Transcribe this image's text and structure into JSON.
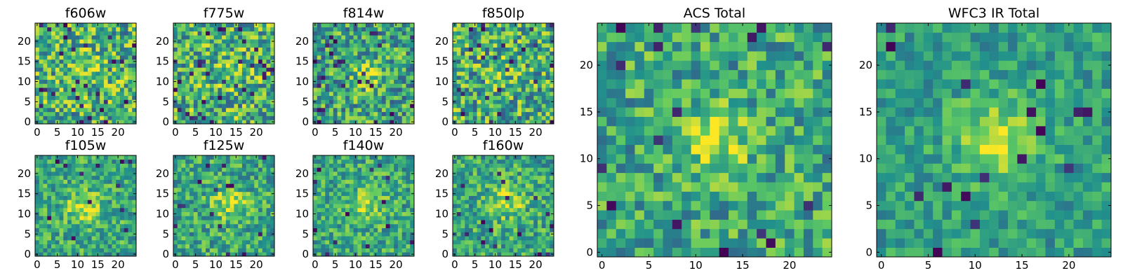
{
  "figure": {
    "description_type": "grid of cutout images (heatmaps)"
  },
  "colormap": {
    "name": "viridis",
    "stops": [
      "#440154",
      "#3b528b",
      "#21918c",
      "#5ec962",
      "#fde725"
    ]
  },
  "chart_data": [
    {
      "type": "heatmap",
      "title": "f606w",
      "grid_size": 25,
      "xticks": [
        0,
        5,
        10,
        15,
        20
      ],
      "yticks": [
        0,
        5,
        10,
        15,
        20
      ],
      "xlim": [
        -0.5,
        24.5
      ],
      "ylim": [
        -0.5,
        24.5
      ],
      "seed": 11,
      "noise": 0.34,
      "blob_amp": 0.18,
      "blob_cx": 12.5,
      "blob_cy": 13.5,
      "blob_sigma": 2.6,
      "base": 0.64,
      "dark_prob": 0.045
    },
    {
      "type": "heatmap",
      "title": "f775w",
      "grid_size": 25,
      "xticks": [
        0,
        5,
        10,
        15,
        20
      ],
      "yticks": [
        0,
        5,
        10,
        15,
        20
      ],
      "xlim": [
        -0.5,
        24.5
      ],
      "ylim": [
        -0.5,
        24.5
      ],
      "seed": 23,
      "noise": 0.34,
      "blob_amp": 0.12,
      "blob_cx": 12.5,
      "blob_cy": 12.5,
      "blob_sigma": 2.6,
      "base": 0.64,
      "dark_prob": 0.045
    },
    {
      "type": "heatmap",
      "title": "f814w",
      "grid_size": 25,
      "xticks": [
        0,
        5,
        10,
        15,
        20
      ],
      "yticks": [
        0,
        5,
        10,
        15,
        20
      ],
      "xlim": [
        -0.5,
        24.5
      ],
      "ylim": [
        -0.5,
        24.5
      ],
      "seed": 37,
      "noise": 0.32,
      "blob_amp": 0.28,
      "blob_cx": 13.0,
      "blob_cy": 11.5,
      "blob_sigma": 2.4,
      "base": 0.58,
      "dark_prob": 0.05
    },
    {
      "type": "heatmap",
      "title": "f850lp",
      "grid_size": 25,
      "xticks": [
        0,
        5,
        10,
        15,
        20
      ],
      "yticks": [
        0,
        5,
        10,
        15,
        20
      ],
      "xlim": [
        -0.5,
        24.5
      ],
      "ylim": [
        -0.5,
        24.5
      ],
      "seed": 41,
      "noise": 0.34,
      "blob_amp": 0.12,
      "blob_cx": 12.0,
      "blob_cy": 12.0,
      "blob_sigma": 2.6,
      "base": 0.62,
      "dark_prob": 0.045
    },
    {
      "type": "heatmap",
      "title": "f105w",
      "grid_size": 25,
      "xticks": [
        0,
        5,
        10,
        15,
        20
      ],
      "yticks": [
        0,
        5,
        10,
        15,
        20
      ],
      "xlim": [
        -0.5,
        24.5
      ],
      "ylim": [
        -0.5,
        24.5
      ],
      "seed": 53,
      "noise": 0.24,
      "blob_amp": 0.3,
      "blob_cx": 11.5,
      "blob_cy": 11.5,
      "blob_sigma": 3.0,
      "base": 0.6,
      "dark_prob": 0.02
    },
    {
      "type": "heatmap",
      "title": "f125w",
      "grid_size": 25,
      "xticks": [
        0,
        5,
        10,
        15,
        20
      ],
      "yticks": [
        0,
        5,
        10,
        15,
        20
      ],
      "xlim": [
        -0.5,
        24.5
      ],
      "ylim": [
        -0.5,
        24.5
      ],
      "seed": 67,
      "noise": 0.25,
      "blob_amp": 0.28,
      "blob_cx": 13.5,
      "blob_cy": 12.5,
      "blob_sigma": 3.0,
      "base": 0.6,
      "dark_prob": 0.02
    },
    {
      "type": "heatmap",
      "title": "f140w",
      "grid_size": 25,
      "xticks": [
        0,
        5,
        10,
        15,
        20
      ],
      "yticks": [
        0,
        5,
        10,
        15,
        20
      ],
      "xlim": [
        -0.5,
        24.5
      ],
      "ylim": [
        -0.5,
        24.5
      ],
      "seed": 79,
      "noise": 0.24,
      "blob_amp": 0.26,
      "blob_cx": 12.5,
      "blob_cy": 12.5,
      "blob_sigma": 3.0,
      "base": 0.6,
      "dark_prob": 0.025
    },
    {
      "type": "heatmap",
      "title": "f160w",
      "grid_size": 25,
      "xticks": [
        0,
        5,
        10,
        15,
        20
      ],
      "yticks": [
        0,
        5,
        10,
        15,
        20
      ],
      "xlim": [
        -0.5,
        24.5
      ],
      "ylim": [
        -0.5,
        24.5
      ],
      "seed": 83,
      "noise": 0.25,
      "blob_amp": 0.26,
      "blob_cx": 13.0,
      "blob_cy": 13.0,
      "blob_sigma": 3.0,
      "base": 0.6,
      "dark_prob": 0.025
    },
    {
      "type": "heatmap",
      "title": "ACS Total",
      "grid_size": 25,
      "xticks": [
        0,
        5,
        10,
        15,
        20
      ],
      "yticks": [
        0,
        5,
        10,
        15,
        20
      ],
      "xlim": [
        -0.5,
        24.5
      ],
      "ylim": [
        -0.5,
        24.5
      ],
      "seed": 97,
      "noise": 0.26,
      "blob_amp": 0.34,
      "blob_cx": 12.5,
      "blob_cy": 12.0,
      "blob_sigma": 2.3,
      "base": 0.6,
      "dark_prob": 0.035
    },
    {
      "type": "heatmap",
      "title": "WFC3 IR Total",
      "grid_size": 25,
      "xticks": [
        0,
        5,
        10,
        15,
        20
      ],
      "yticks": [
        0,
        5,
        10,
        15,
        20
      ],
      "xlim": [
        -0.5,
        24.5
      ],
      "ylim": [
        -0.5,
        24.5
      ],
      "seed": 101,
      "noise": 0.18,
      "blob_amp": 0.34,
      "blob_cx": 12.5,
      "blob_cy": 12.0,
      "blob_sigma": 3.2,
      "base": 0.56,
      "dark_prob": 0.02
    }
  ]
}
